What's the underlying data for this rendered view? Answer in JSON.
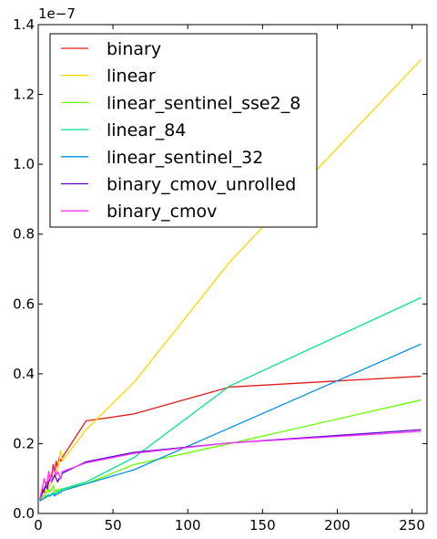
{
  "chart_data": {
    "type": "line",
    "title": "",
    "xlabel": "",
    "ylabel": "",
    "xlim": [
      0,
      260
    ],
    "ylim": [
      0,
      1.4
    ],
    "y_offset_label": "1e−7",
    "x_ticks": [
      0,
      50,
      100,
      150,
      200,
      250
    ],
    "x_tick_labels": [
      "0",
      "50",
      "100",
      "150",
      "200",
      "250"
    ],
    "y_ticks": [
      0,
      0.2,
      0.4,
      0.6,
      0.8,
      1.0,
      1.2,
      1.4
    ],
    "y_tick_labels": [
      "0.0",
      "0.2",
      "0.4",
      "0.6",
      "0.8",
      "1.0",
      "1.2",
      "1.4"
    ],
    "grid": false,
    "legend_position": "top-left",
    "series": [
      {
        "name": "binary",
        "color": "#e41a1c",
        "x": [
          1,
          2,
          3,
          4,
          5,
          6,
          7,
          8,
          9,
          10,
          11,
          12,
          13,
          14,
          15,
          16,
          32,
          64,
          128,
          256
        ],
        "y": [
          0.04,
          0.05,
          0.07,
          0.06,
          0.09,
          0.08,
          0.12,
          0.1,
          0.11,
          0.14,
          0.12,
          0.15,
          0.13,
          0.16,
          0.15,
          0.16,
          0.265,
          0.285,
          0.362,
          0.393
        ]
      },
      {
        "name": "linear",
        "color": "#ffd700",
        "x": [
          1,
          2,
          3,
          4,
          5,
          6,
          7,
          8,
          9,
          10,
          11,
          12,
          13,
          14,
          15,
          16,
          32,
          64,
          128,
          256
        ],
        "y": [
          0.04,
          0.04,
          0.05,
          0.05,
          0.06,
          0.07,
          0.07,
          0.08,
          0.09,
          0.1,
          0.11,
          0.12,
          0.13,
          0.15,
          0.18,
          0.15,
          0.24,
          0.375,
          0.72,
          1.3
        ]
      },
      {
        "name": "linear_sentinel_sse2_8",
        "color": "#66ff00",
        "x": [
          1,
          2,
          3,
          4,
          5,
          6,
          7,
          8,
          9,
          10,
          11,
          12,
          13,
          14,
          15,
          16,
          32,
          64,
          128,
          256
        ],
        "y": [
          0.04,
          0.04,
          0.05,
          0.05,
          0.06,
          0.06,
          0.07,
          0.06,
          0.07,
          0.08,
          0.06,
          0.07,
          0.06,
          0.07,
          0.07,
          0.07,
          0.085,
          0.14,
          0.2,
          0.325
        ]
      },
      {
        "name": "linear_84",
        "color": "#00e38a",
        "x": [
          1,
          2,
          3,
          4,
          5,
          6,
          7,
          8,
          9,
          10,
          11,
          12,
          13,
          14,
          15,
          16,
          32,
          64,
          128,
          256
        ],
        "y": [
          0.035,
          0.04,
          0.04,
          0.045,
          0.05,
          0.05,
          0.055,
          0.05,
          0.055,
          0.06,
          0.055,
          0.06,
          0.06,
          0.065,
          0.065,
          0.07,
          0.09,
          0.16,
          0.365,
          0.618
        ]
      },
      {
        "name": "linear_sentinel_32",
        "color": "#0090e8",
        "x": [
          1,
          2,
          3,
          4,
          5,
          6,
          7,
          8,
          9,
          10,
          11,
          12,
          13,
          14,
          15,
          16,
          32,
          64,
          128,
          256
        ],
        "y": [
          0.035,
          0.04,
          0.04,
          0.045,
          0.045,
          0.05,
          0.05,
          0.05,
          0.055,
          0.055,
          0.05,
          0.055,
          0.055,
          0.06,
          0.06,
          0.065,
          0.085,
          0.125,
          0.245,
          0.485
        ]
      },
      {
        "name": "binary_cmov_unrolled",
        "color": "#5500cc",
        "x": [
          1,
          2,
          3,
          4,
          5,
          6,
          7,
          8,
          9,
          10,
          11,
          12,
          13,
          14,
          15,
          16,
          32,
          64,
          128,
          256
        ],
        "y": [
          0.04,
          0.05,
          0.06,
          0.07,
          0.08,
          0.07,
          0.09,
          0.1,
          0.09,
          0.1,
          0.11,
          0.1,
          0.09,
          0.1,
          0.1,
          0.115,
          0.148,
          0.175,
          0.202,
          0.24
        ]
      },
      {
        "name": "binary_cmov",
        "color": "#ff33ff",
        "x": [
          1,
          2,
          3,
          4,
          5,
          6,
          7,
          8,
          9,
          10,
          11,
          12,
          13,
          14,
          15,
          16,
          32,
          64,
          128,
          256
        ],
        "y": [
          0.04,
          0.06,
          0.08,
          0.1,
          0.08,
          0.09,
          0.12,
          0.1,
          0.09,
          0.13,
          0.12,
          0.11,
          0.12,
          0.11,
          0.1,
          0.12,
          0.145,
          0.172,
          0.202,
          0.235
        ]
      }
    ]
  }
}
